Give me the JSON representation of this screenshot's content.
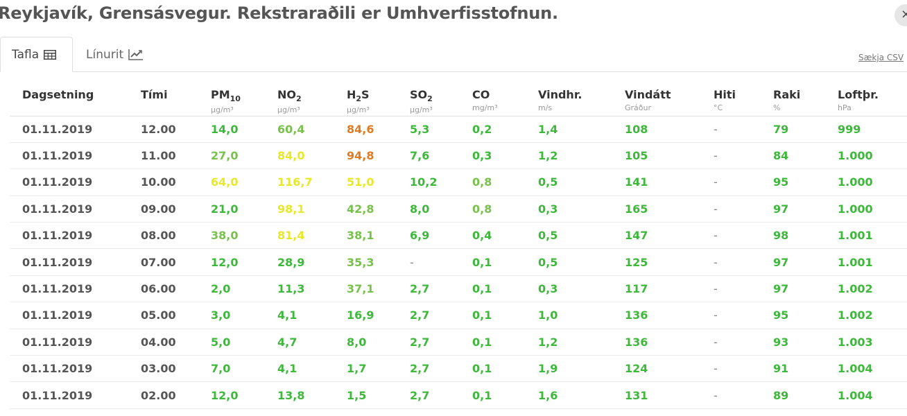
{
  "title": "Reykjavík, Grensásvegur. Rekstraraðili er Umhverfisstofnun.",
  "close_label": "×",
  "tabs": [
    {
      "label": "Tafla",
      "icon": "table-icon"
    },
    {
      "label": "Línurit",
      "icon": "line-chart-icon"
    }
  ],
  "download_csv": "Sækja CSV",
  "colors": {
    "green": "#3db83a",
    "light_green": "#79c14d",
    "yellow": "#e8e827",
    "orange": "#e07b22"
  },
  "columns": [
    {
      "label": "Dagsetning",
      "sub": "",
      "unit": ""
    },
    {
      "label": "Tími",
      "sub": "",
      "unit": ""
    },
    {
      "label": "PM",
      "sub": "10",
      "unit": "µg/m³"
    },
    {
      "label": "NO",
      "sub": "2",
      "unit": "µg/m³"
    },
    {
      "label": "H",
      "sub": "2",
      "tail": "S",
      "unit": "µg/m³"
    },
    {
      "label": "SO",
      "sub": "2",
      "unit": "µg/m³"
    },
    {
      "label": "CO",
      "sub": "",
      "unit": "mg/m³"
    },
    {
      "label": "Vindhr.",
      "sub": "",
      "unit": "m/s"
    },
    {
      "label": "Vindátt",
      "sub": "",
      "unit": "Gráður"
    },
    {
      "label": "Hiti",
      "sub": "",
      "unit": "°C"
    },
    {
      "label": "Raki",
      "sub": "",
      "unit": "%"
    },
    {
      "label": "Loftþr.",
      "sub": "",
      "unit": "hPa"
    }
  ],
  "rows": [
    {
      "date": "01.11.2019",
      "time": "12.00",
      "pm10": "14,0",
      "pm10_c": "green",
      "no2": "60,4",
      "no2_c": "lgreen",
      "h2s": "84,6",
      "h2s_c": "orange",
      "so2": "5,3",
      "so2_c": "green",
      "co": "0,2",
      "co_c": "green",
      "wind": "1,4",
      "dir": "108",
      "temp": "-",
      "hum": "79",
      "press": "999"
    },
    {
      "date": "01.11.2019",
      "time": "11.00",
      "pm10": "27,0",
      "pm10_c": "lgreen",
      "no2": "84,0",
      "no2_c": "yellow",
      "h2s": "94,8",
      "h2s_c": "orange",
      "so2": "7,6",
      "so2_c": "green",
      "co": "0,3",
      "co_c": "green",
      "wind": "1,2",
      "dir": "105",
      "temp": "-",
      "hum": "84",
      "press": "1.000"
    },
    {
      "date": "01.11.2019",
      "time": "10.00",
      "pm10": "64,0",
      "pm10_c": "yellow",
      "no2": "116,7",
      "no2_c": "yellow",
      "h2s": "51,0",
      "h2s_c": "yellow",
      "so2": "10,2",
      "so2_c": "green",
      "co": "0,8",
      "co_c": "lgreen",
      "wind": "0,5",
      "dir": "141",
      "temp": "-",
      "hum": "95",
      "press": "1.000"
    },
    {
      "date": "01.11.2019",
      "time": "09.00",
      "pm10": "21,0",
      "pm10_c": "green",
      "no2": "98,1",
      "no2_c": "yellow",
      "h2s": "42,8",
      "h2s_c": "lgreen",
      "so2": "8,0",
      "so2_c": "green",
      "co": "0,8",
      "co_c": "lgreen",
      "wind": "0,3",
      "dir": "165",
      "temp": "-",
      "hum": "97",
      "press": "1.000"
    },
    {
      "date": "01.11.2019",
      "time": "08.00",
      "pm10": "38,0",
      "pm10_c": "lgreen",
      "no2": "81,4",
      "no2_c": "yellow",
      "h2s": "38,1",
      "h2s_c": "lgreen",
      "so2": "6,9",
      "so2_c": "green",
      "co": "0,4",
      "co_c": "green",
      "wind": "0,5",
      "dir": "147",
      "temp": "-",
      "hum": "98",
      "press": "1.001"
    },
    {
      "date": "01.11.2019",
      "time": "07.00",
      "pm10": "12,0",
      "pm10_c": "green",
      "no2": "28,9",
      "no2_c": "green",
      "h2s": "35,3",
      "h2s_c": "lgreen",
      "so2": "-",
      "so2_c": "dash",
      "co": "0,1",
      "co_c": "green",
      "wind": "0,5",
      "dir": "125",
      "temp": "-",
      "hum": "97",
      "press": "1.001"
    },
    {
      "date": "01.11.2019",
      "time": "06.00",
      "pm10": "2,0",
      "pm10_c": "green",
      "no2": "11,3",
      "no2_c": "green",
      "h2s": "37,1",
      "h2s_c": "lgreen",
      "so2": "2,7",
      "so2_c": "green",
      "co": "0,1",
      "co_c": "green",
      "wind": "0,3",
      "dir": "117",
      "temp": "-",
      "hum": "97",
      "press": "1.002"
    },
    {
      "date": "01.11.2019",
      "time": "05.00",
      "pm10": "3,0",
      "pm10_c": "green",
      "no2": "4,1",
      "no2_c": "green",
      "h2s": "16,9",
      "h2s_c": "green",
      "so2": "2,7",
      "so2_c": "green",
      "co": "0,1",
      "co_c": "green",
      "wind": "1,0",
      "dir": "136",
      "temp": "-",
      "hum": "95",
      "press": "1.002"
    },
    {
      "date": "01.11.2019",
      "time": "04.00",
      "pm10": "5,0",
      "pm10_c": "green",
      "no2": "4,7",
      "no2_c": "green",
      "h2s": "8,0",
      "h2s_c": "green",
      "so2": "2,7",
      "so2_c": "green",
      "co": "0,1",
      "co_c": "green",
      "wind": "1,2",
      "dir": "136",
      "temp": "-",
      "hum": "93",
      "press": "1.003"
    },
    {
      "date": "01.11.2019",
      "time": "03.00",
      "pm10": "7,0",
      "pm10_c": "green",
      "no2": "4,1",
      "no2_c": "green",
      "h2s": "1,7",
      "h2s_c": "green",
      "so2": "2,7",
      "so2_c": "green",
      "co": "0,1",
      "co_c": "green",
      "wind": "1,9",
      "dir": "124",
      "temp": "-",
      "hum": "91",
      "press": "1.004"
    },
    {
      "date": "01.11.2019",
      "time": "02.00",
      "pm10": "12,0",
      "pm10_c": "green",
      "no2": "13,8",
      "no2_c": "green",
      "h2s": "1,5",
      "h2s_c": "green",
      "so2": "2,7",
      "so2_c": "green",
      "co": "0,1",
      "co_c": "green",
      "wind": "1,6",
      "dir": "131",
      "temp": "-",
      "hum": "89",
      "press": "1.004"
    }
  ]
}
